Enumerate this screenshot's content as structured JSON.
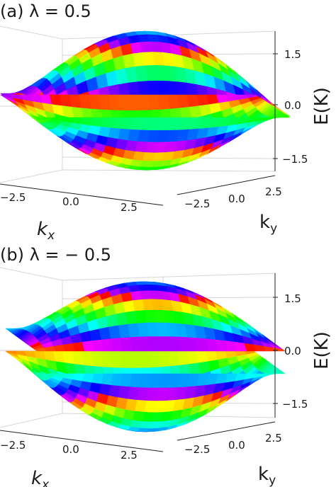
{
  "chart_data": [
    {
      "panel": "a",
      "type": "surface",
      "title": "(a) λ = 0.5",
      "zlabel": "E(K)",
      "xlabel": "k_x",
      "ylabel": "k_y",
      "xticks": [
        "−2.5",
        "0.0",
        "2.5"
      ],
      "yticks": [
        "−2.5",
        "0.0",
        "2.5"
      ],
      "zticks": [
        "1.5",
        "0.0",
        "−1.5"
      ],
      "xlim": [
        -3.14,
        3.14
      ],
      "ylim": [
        -3.14,
        3.14
      ],
      "zlim": [
        -2.0,
        2.0
      ],
      "colormap": "hsv",
      "grid": true,
      "surfaces": [
        "upper band",
        "lower band"
      ]
    },
    {
      "panel": "b",
      "type": "surface",
      "title": "(b) λ = − 0.5",
      "zlabel": "E(K)",
      "xlabel": "k_x",
      "ylabel": "k_y",
      "xticks": [
        "−2.5",
        "0.0",
        "2.5"
      ],
      "yticks": [
        "−2.5",
        "0.0",
        "2.5"
      ],
      "zticks": [
        "1.5",
        "0.0",
        "−1.5"
      ],
      "xlim": [
        -3.14,
        3.14
      ],
      "ylim": [
        -3.14,
        3.14
      ],
      "zlim": [
        -2.0,
        2.0
      ],
      "colormap": "hsv",
      "grid": true,
      "surfaces": [
        "upper band",
        "lower band"
      ]
    }
  ]
}
